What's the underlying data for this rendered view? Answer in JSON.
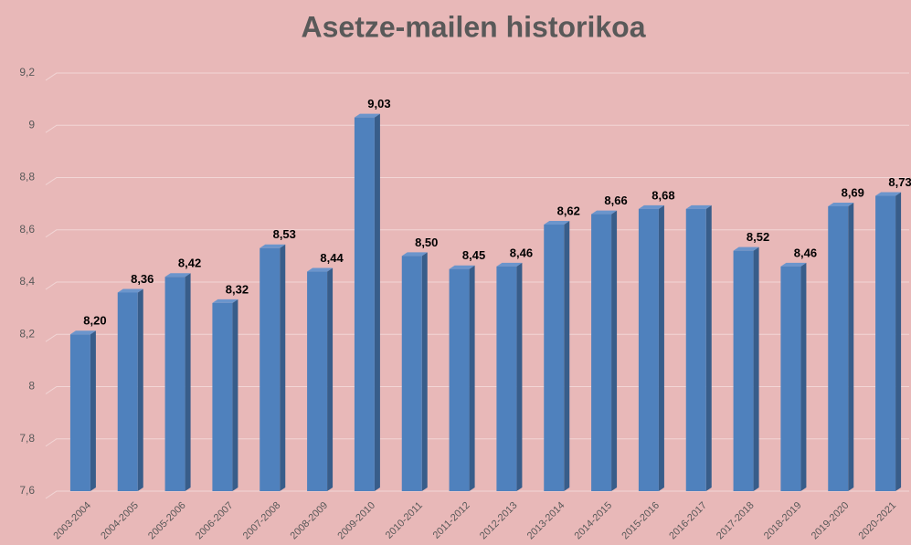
{
  "chart_data": {
    "type": "bar3d",
    "title": "Asetze-mailen historikoa",
    "categories": [
      "2003-2004",
      "2004-2005",
      "2005-2006",
      "2006-2007",
      "2007-2008",
      "2008-2009",
      "2009-2010",
      "2010-2011",
      "2011-2012",
      "2012-2013",
      "2013-2014",
      "2014-2015",
      "2015-2016",
      "2016-2017",
      "2017-2018",
      "2018-2019",
      "2019-2020",
      "2020-2021"
    ],
    "values": [
      8.2,
      8.36,
      8.42,
      8.32,
      8.53,
      8.44,
      9.03,
      8.5,
      8.45,
      8.46,
      8.62,
      8.66,
      8.68,
      8.68,
      8.52,
      8.46,
      8.69,
      8.73
    ],
    "value_labels": [
      "8,20",
      "8,36",
      "8,42",
      "8,32",
      "8,53",
      "8,44",
      "9,03",
      "8,50",
      "8,45",
      "8,46",
      "8,62",
      "8,66",
      "8,68",
      null,
      "8,52",
      "8,46",
      "8,69",
      "8,73"
    ],
    "color": "#4f81bd",
    "ylim": [
      7.6,
      9.2
    ],
    "yticks": [
      {
        "value": 7.6,
        "label": "7,6"
      },
      8,
      {
        "value": 7.8,
        "label": "7,8"
      },
      {
        "value": 8.2,
        "label": "8,2"
      },
      {
        "value": 8.4,
        "label": "8,4"
      },
      {
        "value": 8.6,
        "label": "8,6"
      },
      {
        "value": 8.8,
        "label": "8,8"
      },
      9,
      {
        "value": 9.2,
        "label": "9,2"
      }
    ],
    "grid": true
  }
}
